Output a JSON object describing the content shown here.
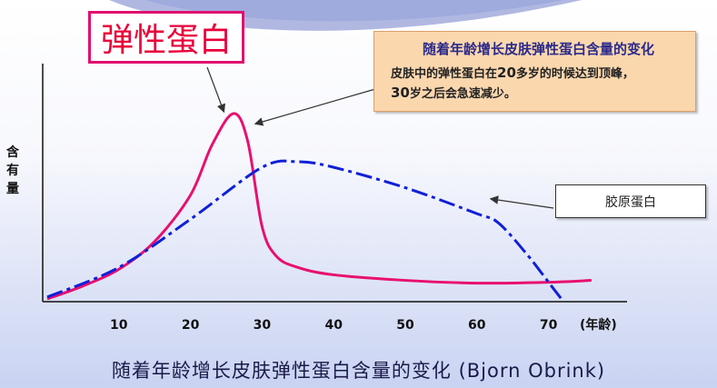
{
  "title_box": "弹性蛋白",
  "note": {
    "title": "随着年龄增长皮肤弹性蛋白含量的变化",
    "line1_pre": "皮肤中的弹性蛋白在",
    "line1_num": "20",
    "line1_post": "多岁的时候达到顶峰，",
    "line2_num": "30",
    "line2_post": "岁之后会急速减少。"
  },
  "collagen_label": "胶原蛋白",
  "ylabel": "含有量",
  "caption": "随着年龄增长皮肤弹性蛋白含量的变化 (Bjorn Obrink)",
  "colors": {
    "elastin": "#e8106f",
    "collagen": "#1020d8",
    "axis": "#111111",
    "note_bg": "#fbd7ae"
  },
  "chart_data": {
    "type": "line",
    "x_ticks": [
      10,
      20,
      30,
      40,
      50,
      60,
      70
    ],
    "x_unit_label": "(年龄)",
    "xlim": [
      0,
      80
    ],
    "ylim": [
      0,
      100
    ],
    "grid": false,
    "y_tick_labels": false,
    "series": [
      {
        "name": "弹性蛋白",
        "style": "solid",
        "color": "#e8106f",
        "x": [
          0,
          5,
          10,
          15,
          20,
          23,
          26,
          28,
          30,
          32,
          35,
          40,
          50,
          60,
          70,
          76
        ],
        "y": [
          1,
          8,
          17,
          32,
          57,
          84,
          101,
          86,
          40,
          24,
          18,
          14,
          11,
          9.5,
          10,
          11
        ]
      },
      {
        "name": "胶原蛋白",
        "style": "dashdot",
        "color": "#1020d8",
        "x": [
          0,
          10,
          20,
          30,
          35,
          40,
          50,
          60,
          63,
          67,
          70,
          72
        ],
        "y": [
          2,
          18,
          44,
          72,
          75,
          72,
          61,
          47,
          42,
          25,
          10,
          0
        ]
      }
    ]
  }
}
